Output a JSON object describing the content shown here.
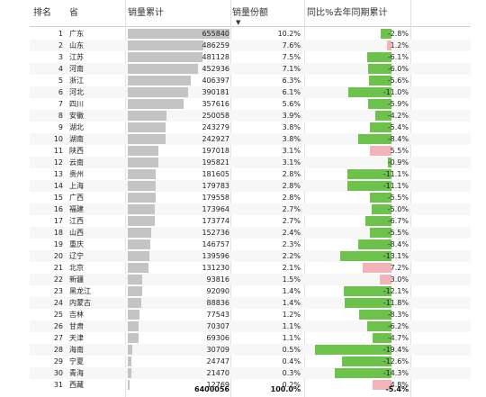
{
  "chart_data": {
    "type": "table",
    "columns": [
      "排名",
      "省",
      "销量累计",
      "销量份额",
      "同比%去年同期累计"
    ],
    "rows": [
      {
        "rank": "1",
        "province": "广东",
        "sales": 655840,
        "sales_label": "655840",
        "share": "10.2%",
        "yoy": -2.8,
        "yoy_label": "-2.8%"
      },
      {
        "rank": "2",
        "province": "山东",
        "sales": 486259,
        "sales_label": "486259",
        "share": "7.6%",
        "yoy": 1.2,
        "yoy_label": "1.2%"
      },
      {
        "rank": "3",
        "province": "江苏",
        "sales": 481128,
        "sales_label": "481128",
        "share": "7.5%",
        "yoy": -6.1,
        "yoy_label": "-6.1%"
      },
      {
        "rank": "4",
        "province": "河南",
        "sales": 452936,
        "sales_label": "452936",
        "share": "7.1%",
        "yoy": -6.0,
        "yoy_label": "-6.0%"
      },
      {
        "rank": "5",
        "province": "浙江",
        "sales": 406397,
        "sales_label": "406397",
        "share": "6.3%",
        "yoy": -5.6,
        "yoy_label": "-5.6%"
      },
      {
        "rank": "6",
        "province": "河北",
        "sales": 390181,
        "sales_label": "390181",
        "share": "6.1%",
        "yoy": -11.0,
        "yoy_label": "-11.0%"
      },
      {
        "rank": "7",
        "province": "四川",
        "sales": 357616,
        "sales_label": "357616",
        "share": "5.6%",
        "yoy": -5.9,
        "yoy_label": "-5.9%"
      },
      {
        "rank": "8",
        "province": "安徽",
        "sales": 250058,
        "sales_label": "250058",
        "share": "3.9%",
        "yoy": -4.2,
        "yoy_label": "-4.2%"
      },
      {
        "rank": "9",
        "province": "湖北",
        "sales": 243279,
        "sales_label": "243279",
        "share": "3.8%",
        "yoy": -5.4,
        "yoy_label": "-5.4%"
      },
      {
        "rank": "10",
        "province": "湖南",
        "sales": 242927,
        "sales_label": "242927",
        "share": "3.8%",
        "yoy": -8.4,
        "yoy_label": "-8.4%"
      },
      {
        "rank": "11",
        "province": "陕西",
        "sales": 197018,
        "sales_label": "197018",
        "share": "3.1%",
        "yoy": 5.5,
        "yoy_label": "5.5%"
      },
      {
        "rank": "12",
        "province": "云南",
        "sales": 195821,
        "sales_label": "195821",
        "share": "3.1%",
        "yoy": -0.9,
        "yoy_label": "-0.9%"
      },
      {
        "rank": "13",
        "province": "贵州",
        "sales": 181605,
        "sales_label": "181605",
        "share": "2.8%",
        "yoy": -11.1,
        "yoy_label": "-11.1%"
      },
      {
        "rank": "14",
        "province": "上海",
        "sales": 179783,
        "sales_label": "179783",
        "share": "2.8%",
        "yoy": -11.1,
        "yoy_label": "-11.1%"
      },
      {
        "rank": "15",
        "province": "广西",
        "sales": 179558,
        "sales_label": "179558",
        "share": "2.8%",
        "yoy": -5.5,
        "yoy_label": "-5.5%"
      },
      {
        "rank": "16",
        "province": "福建",
        "sales": 173964,
        "sales_label": "173964",
        "share": "2.7%",
        "yoy": -5.0,
        "yoy_label": "-5.0%"
      },
      {
        "rank": "17",
        "province": "江西",
        "sales": 173774,
        "sales_label": "173774",
        "share": "2.7%",
        "yoy": -6.7,
        "yoy_label": "-6.7%"
      },
      {
        "rank": "18",
        "province": "山西",
        "sales": 152736,
        "sales_label": "152736",
        "share": "2.4%",
        "yoy": -5.5,
        "yoy_label": "-5.5%"
      },
      {
        "rank": "19",
        "province": "重庆",
        "sales": 146757,
        "sales_label": "146757",
        "share": "2.3%",
        "yoy": -8.4,
        "yoy_label": "-8.4%"
      },
      {
        "rank": "20",
        "province": "辽宁",
        "sales": 139596,
        "sales_label": "139596",
        "share": "2.2%",
        "yoy": -13.1,
        "yoy_label": "-13.1%"
      },
      {
        "rank": "21",
        "province": "北京",
        "sales": 131230,
        "sales_label": "131230",
        "share": "2.1%",
        "yoy": 7.2,
        "yoy_label": "7.2%"
      },
      {
        "rank": "22",
        "province": "新疆",
        "sales": 93816,
        "sales_label": "93816",
        "share": "1.5%",
        "yoy": 3.0,
        "yoy_label": "3.0%"
      },
      {
        "rank": "23",
        "province": "黑龙江",
        "sales": 92090,
        "sales_label": "92090",
        "share": "1.4%",
        "yoy": -12.1,
        "yoy_label": "-12.1%"
      },
      {
        "rank": "24",
        "province": "内蒙古",
        "sales": 88836,
        "sales_label": "88836",
        "share": "1.4%",
        "yoy": -11.8,
        "yoy_label": "-11.8%"
      },
      {
        "rank": "25",
        "province": "吉林",
        "sales": 77543,
        "sales_label": "77543",
        "share": "1.2%",
        "yoy": -8.3,
        "yoy_label": "-8.3%"
      },
      {
        "rank": "26",
        "province": "甘肃",
        "sales": 70307,
        "sales_label": "70307",
        "share": "1.1%",
        "yoy": -6.2,
        "yoy_label": "-6.2%"
      },
      {
        "rank": "27",
        "province": "天津",
        "sales": 69306,
        "sales_label": "69306",
        "share": "1.1%",
        "yoy": -4.7,
        "yoy_label": "-4.7%"
      },
      {
        "rank": "28",
        "province": "海南",
        "sales": 30709,
        "sales_label": "30709",
        "share": "0.5%",
        "yoy": -19.4,
        "yoy_label": "-19.4%"
      },
      {
        "rank": "29",
        "province": "宁夏",
        "sales": 24747,
        "sales_label": "24747",
        "share": "0.4%",
        "yoy": -12.6,
        "yoy_label": "-12.6%"
      },
      {
        "rank": "30",
        "province": "青海",
        "sales": 21470,
        "sales_label": "21470",
        "share": "0.3%",
        "yoy": -14.3,
        "yoy_label": "-14.3%"
      },
      {
        "rank": "31",
        "province": "西藏",
        "sales": 12769,
        "sales_label": "12769",
        "share": "0.2%",
        "yoy": 4.8,
        "yoy_label": "4.8%"
      }
    ],
    "totals": {
      "sales": "6400056",
      "share": "100.0%",
      "yoy": "-5.4%"
    },
    "sales_max": 655840,
    "yoy_abs_max": 19.4,
    "sort": {
      "column": "销量份额",
      "direction": "descending"
    },
    "colors": {
      "sales_bar": "#c4c4c4",
      "negative_bar": "#6cc24a",
      "positive_bar": "#f2b4b9"
    },
    "grid": false
  }
}
